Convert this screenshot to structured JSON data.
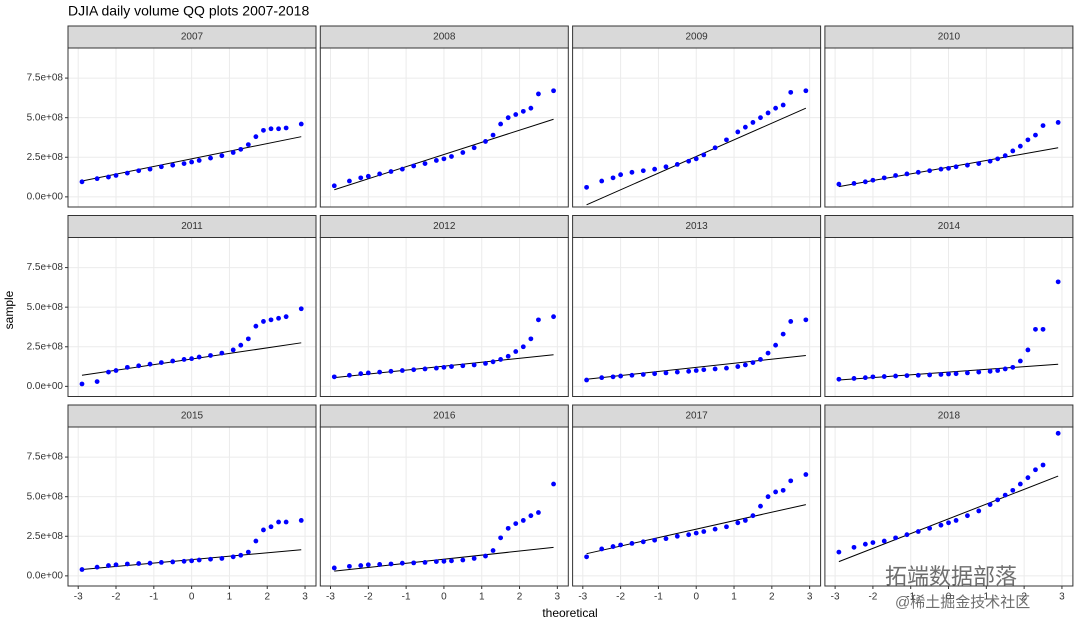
{
  "title": "DJIA daily volume QQ plots 2007-2018",
  "xlabel": "theoretical",
  "ylabel": "sample",
  "xlim": [
    -3.27,
    3.29
  ],
  "ylim": [
    -64000000.0,
    940000000.0
  ],
  "xticks": [
    -3,
    -2,
    -1,
    0,
    1,
    2,
    3
  ],
  "yticks": [
    {
      "value": 0,
      "label": "0.0e+00"
    },
    {
      "value": 250000000.0,
      "label": "2.5e+08"
    },
    {
      "value": 500000000.0,
      "label": "5.0e+08"
    },
    {
      "value": 750000000.0,
      "label": "7.5e+08"
    }
  ],
  "x": [
    -2.9,
    -2.5,
    -2.2,
    -2,
    -1.7,
    -1.4,
    -1.1,
    -0.8,
    -0.5,
    -0.2,
    0,
    0.2,
    0.5,
    0.8,
    1.1,
    1.3,
    1.5,
    1.7,
    1.9,
    2.1,
    2.3,
    2.5,
    2.9
  ],
  "line_x": [
    -2.9,
    2.9
  ],
  "point_color": "#0000ff",
  "line_color": "#000000",
  "grid": true,
  "watermark": [
    "拓端数据部落",
    "@稀土掘金技术社区"
  ],
  "chart_data": [
    {
      "type": "scatter",
      "title": "2007",
      "values": [
        95000000.0,
        115000000.0,
        125000000.0,
        135000000.0,
        150000000.0,
        165000000.0,
        175000000.0,
        190000000.0,
        200000000.0,
        210000000.0,
        220000000.0,
        230000000.0,
        245000000.0,
        260000000.0,
        280000000.0,
        300000000.0,
        330000000.0,
        380000000.0,
        420000000.0,
        430000000.0,
        430000000.0,
        435000000.0,
        460000000.0
      ],
      "line": [
        100000000.0,
        380000000.0
      ]
    },
    {
      "type": "scatter",
      "title": "2008",
      "values": [
        70000000.0,
        100000000.0,
        120000000.0,
        130000000.0,
        145000000.0,
        160000000.0,
        175000000.0,
        195000000.0,
        210000000.0,
        230000000.0,
        240000000.0,
        255000000.0,
        280000000.0,
        310000000.0,
        350000000.0,
        390000000.0,
        460000000.0,
        500000000.0,
        520000000.0,
        540000000.0,
        560000000.0,
        650000000.0,
        670000000.0
      ],
      "line": [
        45000000.0,
        490000000.0
      ]
    },
    {
      "type": "scatter",
      "title": "2009",
      "values": [
        60000000.0,
        100000000.0,
        120000000.0,
        140000000.0,
        155000000.0,
        165000000.0,
        175000000.0,
        190000000.0,
        205000000.0,
        225000000.0,
        240000000.0,
        265000000.0,
        310000000.0,
        360000000.0,
        410000000.0,
        440000000.0,
        470000000.0,
        500000000.0,
        530000000.0,
        560000000.0,
        580000000.0,
        660000000.0,
        670000000.0
      ],
      "line": [
        -50000000.0,
        560000000.0
      ]
    },
    {
      "type": "scatter",
      "title": "2010",
      "values": [
        80000000.0,
        85000000.0,
        95000000.0,
        105000000.0,
        120000000.0,
        135000000.0,
        145000000.0,
        155000000.0,
        165000000.0,
        175000000.0,
        180000000.0,
        190000000.0,
        200000000.0,
        210000000.0,
        225000000.0,
        240000000.0,
        260000000.0,
        290000000.0,
        320000000.0,
        360000000.0,
        390000000.0,
        450000000.0,
        470000000.0
      ],
      "line": [
        65000000.0,
        310000000.0
      ]
    },
    {
      "type": "scatter",
      "title": "2011",
      "values": [
        15000000.0,
        30000000.0,
        90000000.0,
        100000000.0,
        120000000.0,
        130000000.0,
        140000000.0,
        150000000.0,
        160000000.0,
        170000000.0,
        175000000.0,
        185000000.0,
        195000000.0,
        210000000.0,
        230000000.0,
        260000000.0,
        300000000.0,
        380000000.0,
        410000000.0,
        420000000.0,
        430000000.0,
        440000000.0,
        490000000.0
      ],
      "line": [
        70000000.0,
        275000000.0
      ]
    },
    {
      "type": "scatter",
      "title": "2012",
      "values": [
        60000000.0,
        70000000.0,
        80000000.0,
        85000000.0,
        90000000.0,
        95000000.0,
        100000000.0,
        105000000.0,
        110000000.0,
        115000000.0,
        120000000.0,
        125000000.0,
        130000000.0,
        135000000.0,
        145000000.0,
        155000000.0,
        170000000.0,
        190000000.0,
        220000000.0,
        250000000.0,
        300000000.0,
        420000000.0,
        440000000.0
      ],
      "line": [
        55000000.0,
        200000000.0
      ]
    },
    {
      "type": "scatter",
      "title": "2013",
      "values": [
        40000000.0,
        55000000.0,
        60000000.0,
        65000000.0,
        70000000.0,
        75000000.0,
        80000000.0,
        85000000.0,
        90000000.0,
        95000000.0,
        100000000.0,
        105000000.0,
        110000000.0,
        115000000.0,
        125000000.0,
        135000000.0,
        150000000.0,
        170000000.0,
        210000000.0,
        260000000.0,
        330000000.0,
        410000000.0,
        420000000.0
      ],
      "line": [
        45000000.0,
        195000000.0
      ]
    },
    {
      "type": "scatter",
      "title": "2014",
      "values": [
        45000000.0,
        50000000.0,
        55000000.0,
        60000000.0,
        62000000.0,
        65000000.0,
        68000000.0,
        70000000.0,
        72000000.0,
        75000000.0,
        78000000.0,
        80000000.0,
        85000000.0,
        90000000.0,
        95000000.0,
        100000000.0,
        110000000.0,
        120000000.0,
        160000000.0,
        230000000.0,
        360000000.0,
        360000000.0,
        660000000.0
      ],
      "line": [
        40000000.0,
        140000000.0
      ]
    },
    {
      "type": "scatter",
      "title": "2015",
      "values": [
        40000000.0,
        55000000.0,
        65000000.0,
        70000000.0,
        75000000.0,
        78000000.0,
        80000000.0,
        85000000.0,
        88000000.0,
        92000000.0,
        95000000.0,
        100000000.0,
        105000000.0,
        110000000.0,
        120000000.0,
        130000000.0,
        150000000.0,
        220000000.0,
        290000000.0,
        310000000.0,
        340000000.0,
        340000000.0,
        350000000.0
      ],
      "line": [
        40000000.0,
        165000000.0
      ]
    },
    {
      "type": "scatter",
      "title": "2016",
      "values": [
        50000000.0,
        60000000.0,
        65000000.0,
        70000000.0,
        72000000.0,
        75000000.0,
        80000000.0,
        82000000.0,
        85000000.0,
        90000000.0,
        92000000.0,
        95000000.0,
        100000000.0,
        110000000.0,
        125000000.0,
        160000000.0,
        240000000.0,
        300000000.0,
        330000000.0,
        350000000.0,
        380000000.0,
        400000000.0,
        580000000.0
      ],
      "line": [
        30000000.0,
        180000000.0
      ]
    },
    {
      "type": "scatter",
      "title": "2017",
      "values": [
        120000000.0,
        170000000.0,
        185000000.0,
        195000000.0,
        205000000.0,
        215000000.0,
        225000000.0,
        235000000.0,
        250000000.0,
        260000000.0,
        270000000.0,
        280000000.0,
        295000000.0,
        310000000.0,
        335000000.0,
        350000000.0,
        380000000.0,
        440000000.0,
        500000000.0,
        530000000.0,
        540000000.0,
        600000000.0,
        640000000.0
      ],
      "line": [
        140000000.0,
        450000000.0
      ]
    },
    {
      "type": "scatter",
      "title": "2018",
      "values": [
        150000000.0,
        180000000.0,
        200000000.0,
        210000000.0,
        220000000.0,
        240000000.0,
        260000000.0,
        280000000.0,
        300000000.0,
        320000000.0,
        335000000.0,
        350000000.0,
        380000000.0,
        410000000.0,
        450000000.0,
        480000000.0,
        510000000.0,
        540000000.0,
        580000000.0,
        620000000.0,
        670000000.0,
        700000000.0,
        900000000.0
      ],
      "line": [
        90000000.0,
        630000000.0
      ]
    }
  ]
}
